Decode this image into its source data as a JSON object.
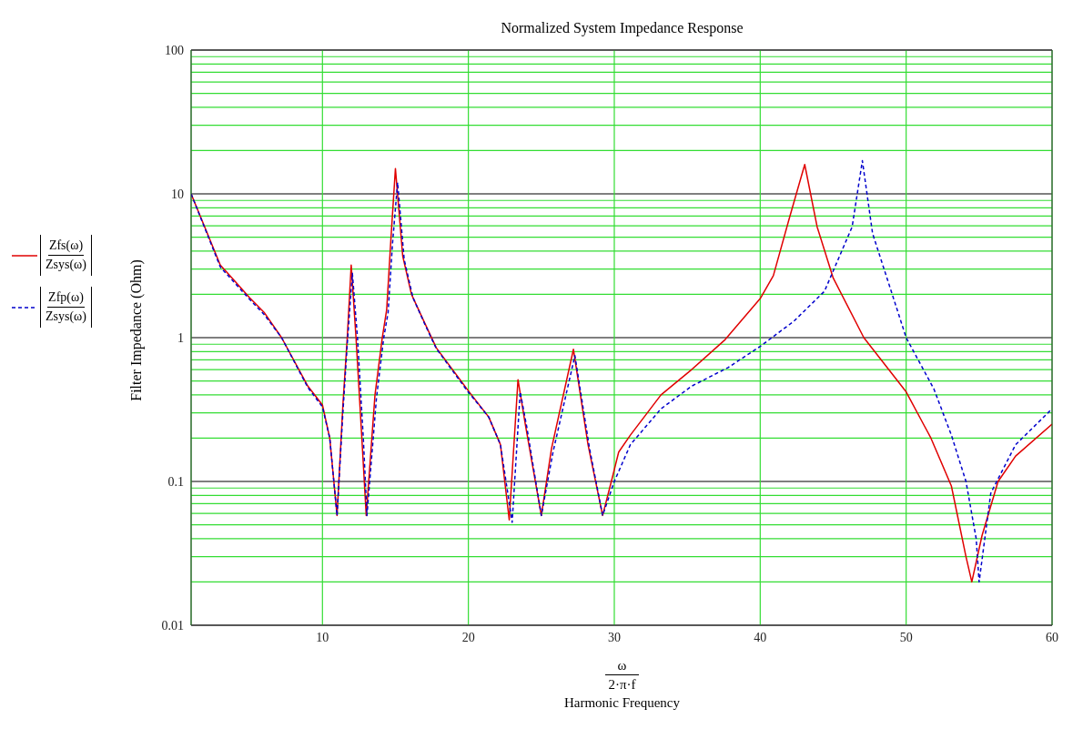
{
  "chart_data": {
    "type": "line",
    "title": "Normalized System Impedance Response",
    "xlabel": "ω\n2·π·f\nHarmonic Frequency",
    "ylabel": "Filter Impedance (Ohm)",
    "log": "y",
    "grid": true,
    "legend": "left",
    "xlim": [
      1,
      60
    ],
    "xticks": [
      10,
      20,
      30,
      40,
      50,
      60
    ],
    "ylim": [
      0.01,
      100
    ],
    "yticks": [
      0.01,
      {
        "value": 0.02,
        "label": null
      },
      {
        "value": 0.03,
        "label": null
      },
      {
        "value": 0.04,
        "label": null
      },
      {
        "value": 0.05,
        "label": null
      },
      {
        "value": 0.06,
        "label": null
      },
      {
        "value": 0.07,
        "label": null
      },
      {
        "value": 0.08,
        "label": null
      },
      {
        "value": 0.09,
        "label": null
      },
      0.1,
      {
        "value": 0.2,
        "label": null
      },
      {
        "value": 0.3,
        "label": null
      },
      {
        "value": 0.4,
        "label": null
      },
      {
        "value": 0.5,
        "label": null
      },
      {
        "value": 0.6,
        "label": null
      },
      {
        "value": 0.7,
        "label": null
      },
      {
        "value": 0.8,
        "label": null
      },
      {
        "value": 0.9,
        "label": null
      },
      1,
      {
        "value": 2,
        "label": null
      },
      {
        "value": 3,
        "label": null
      },
      {
        "value": 4,
        "label": null
      },
      {
        "value": 5,
        "label": null
      },
      {
        "value": 6,
        "label": null
      },
      {
        "value": 7,
        "label": null
      },
      {
        "value": 8,
        "label": null
      },
      {
        "value": 9,
        "label": null
      },
      10,
      {
        "value": 20,
        "label": null
      },
      {
        "value": 30,
        "label": null
      },
      {
        "value": 40,
        "label": null
      },
      {
        "value": 50,
        "label": null
      },
      {
        "value": 60,
        "label": null
      },
      {
        "value": 70,
        "label": null
      },
      {
        "value": 80,
        "label": null
      },
      {
        "value": 90,
        "label": null
      },
      100
    ],
    "series": [
      {
        "name": "Zfs(ω)\nZsys(ω)",
        "color": "#e00000",
        "line_style": "solid",
        "x": [
          1,
          3,
          5,
          6,
          7.2,
          9,
          10,
          10.5,
          11.0,
          11.4,
          11.7,
          11.97,
          12.3,
          12.7,
          13.0,
          13.6,
          14.1,
          14.4,
          14.7,
          15.0,
          15.5,
          16.1,
          17.0,
          17.8,
          19.9,
          21.4,
          22.2,
          22.8,
          23.4,
          23.9,
          25.0,
          25.7,
          27.2,
          28.2,
          29.2,
          29.9,
          30.3,
          31.1,
          33.2,
          35.3,
          37.6,
          40.0,
          40.9,
          42.0,
          43.05,
          43.9,
          45.0,
          47.1,
          50.0,
          51.7,
          53.1,
          54.1,
          54.5,
          55.2,
          56.3,
          57.5,
          60
        ],
        "values": [
          10,
          3.2,
          1.9,
          1.5,
          1,
          0.46,
          0.34,
          0.2,
          0.058,
          0.34,
          1,
          3.2,
          1,
          0.2,
          0.058,
          0.4,
          1,
          1.56,
          5.0,
          15,
          3.7,
          2.0,
          1.27,
          0.85,
          0.44,
          0.28,
          0.18,
          0.054,
          0.51,
          0.25,
          0.058,
          0.17,
          0.83,
          0.18,
          0.058,
          0.11,
          0.16,
          0.21,
          0.4,
          0.6,
          0.97,
          1.87,
          2.7,
          6.8,
          16,
          5.9,
          2.6,
          1,
          0.42,
          0.2,
          0.093,
          0.03,
          0.02,
          0.042,
          0.1,
          0.15,
          0.25
        ]
      },
      {
        "name": "Zfp(ω)\nZsys(ω)",
        "color": "#0000cc",
        "line_style": "dashed",
        "x": [
          1,
          3,
          5,
          6,
          7.2,
          9,
          10,
          10.5,
          11.0,
          11.4,
          11.7,
          12.05,
          12.4,
          12.8,
          13.05,
          13.7,
          14.2,
          14.5,
          14.8,
          15.15,
          15.6,
          16.2,
          17.0,
          17.8,
          19.9,
          21.4,
          22.2,
          23.0,
          23.55,
          24.0,
          25.0,
          25.8,
          27.3,
          28.3,
          29.2,
          30.0,
          31.1,
          33.2,
          35.3,
          37.8,
          40.0,
          42.3,
          44.4,
          46.3,
          46.7,
          47.0,
          47.7,
          49.5,
          50.0,
          51.9,
          53.1,
          54.1,
          54.8,
          55.0,
          55.8,
          57.5,
          60
        ],
        "values": [
          10,
          3.1,
          1.85,
          1.45,
          1,
          0.45,
          0.33,
          0.2,
          0.058,
          0.3,
          0.9,
          2.8,
          1,
          0.2,
          0.058,
          0.38,
          1,
          1.5,
          4.5,
          12,
          3.5,
          1.9,
          1.25,
          0.84,
          0.43,
          0.28,
          0.18,
          0.052,
          0.42,
          0.24,
          0.058,
          0.16,
          0.75,
          0.17,
          0.058,
          0.1,
          0.18,
          0.32,
          0.46,
          0.62,
          0.87,
          1.3,
          2.1,
          5.9,
          10.8,
          17,
          5.3,
          1.44,
          1,
          0.44,
          0.21,
          0.1,
          0.04,
          0.02,
          0.083,
          0.18,
          0.32
        ]
      }
    ]
  }
}
